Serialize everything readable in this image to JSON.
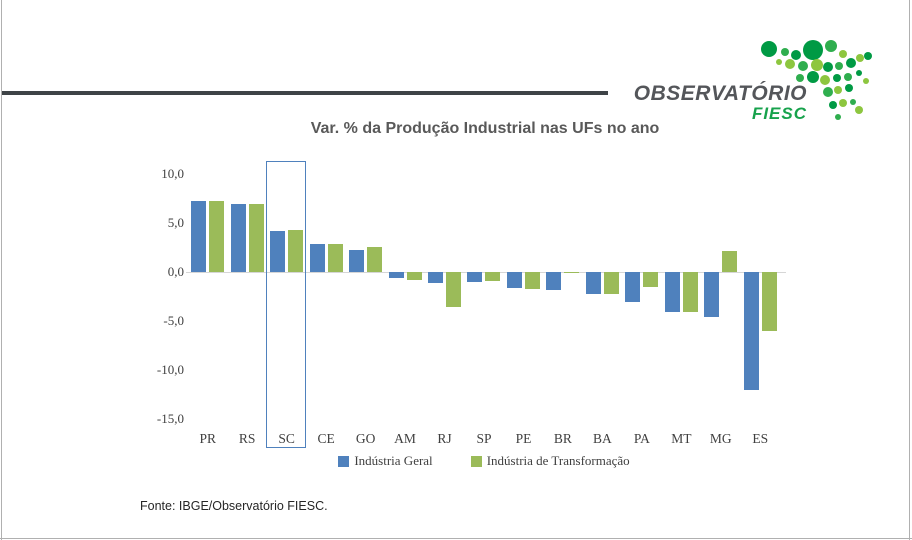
{
  "page": {
    "fonte": "Fonte: IBGE/Observatório FIESC."
  },
  "logo": {
    "line1": "OBSERVATÓRIO",
    "line2": "FIESC",
    "colors": {
      "text": "#54565a",
      "fiesc_green": "#17a24c",
      "dot_dark": "#009a44",
      "dot_mid": "#2fae4e",
      "dot_light": "#8dc63f"
    }
  },
  "chart_data": {
    "type": "bar",
    "title": "Var. % da Produção Industrial nas UFs no ano",
    "categories": [
      "PR",
      "RS",
      "SC",
      "CE",
      "GO",
      "AM",
      "RJ",
      "SP",
      "PE",
      "BR",
      "BA",
      "PA",
      "MT",
      "MG",
      "ES"
    ],
    "series": [
      {
        "name": "Indústria Geral",
        "color": "#4f81bd",
        "values": [
          7.3,
          7.0,
          4.2,
          2.9,
          2.3,
          -0.6,
          -1.1,
          -1.0,
          -1.6,
          -1.8,
          -2.2,
          -3.1,
          -4.1,
          -4.6,
          -12.1
        ]
      },
      {
        "name": "Indústria de Transformação",
        "color": "#9bbb59",
        "values": [
          7.3,
          7.0,
          4.3,
          2.9,
          2.6,
          -0.8,
          -3.6,
          -0.9,
          -1.7,
          -0.1,
          -2.3,
          -1.5,
          -4.1,
          2.1,
          -6.0
        ]
      }
    ],
    "y_ticks": [
      "10,0",
      "5,0",
      "0,0",
      "-5,0",
      "-10,0",
      "-15,0"
    ],
    "y_tick_values": [
      10,
      5,
      0,
      -5,
      -10,
      -15
    ],
    "ylim": [
      -15,
      11
    ],
    "grid": "zero-line-only",
    "highlighted_category": "SC",
    "legend_position": "bottom",
    "xlabel": "",
    "ylabel": ""
  }
}
